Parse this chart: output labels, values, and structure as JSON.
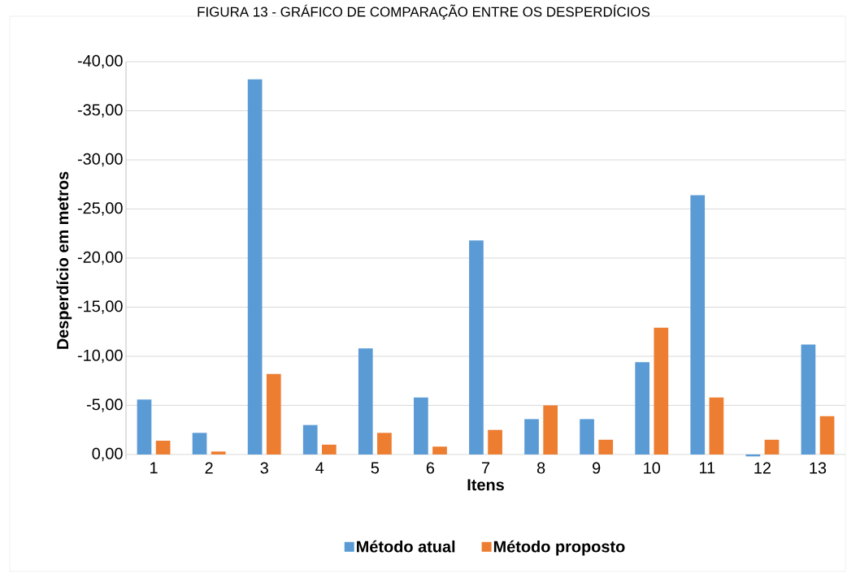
{
  "chart_data": {
    "type": "bar",
    "title": "FIGURA 13 - GRÁFICO DE COMPARAÇÃO ENTRE OS DESPERDÍCIOS",
    "xlabel": "Itens",
    "ylabel": "Desperdício em metros",
    "categories": [
      "1",
      "2",
      "3",
      "4",
      "5",
      "6",
      "7",
      "8",
      "9",
      "10",
      "11",
      "12",
      "13"
    ],
    "series": [
      {
        "name": "Método atual",
        "color": "#5b9bd5",
        "values": [
          -5.6,
          -2.2,
          -38.2,
          -3.0,
          -10.8,
          -5.8,
          -21.8,
          -3.6,
          -3.6,
          -9.4,
          -26.4,
          0.2,
          -11.2
        ]
      },
      {
        "name": "Método proposto",
        "color": "#ed7d31",
        "values": [
          -1.4,
          -0.3,
          -8.2,
          -1.0,
          -2.2,
          -0.8,
          -2.5,
          -5.0,
          -1.5,
          -12.9,
          -5.8,
          -1.5,
          -3.9
        ]
      }
    ],
    "ylim": [
      0.5,
      -40
    ],
    "yticks": [
      {
        "value": 0,
        "label": "0,00"
      },
      {
        "value": -5,
        "label": "-5,00"
      },
      {
        "value": -10,
        "label": "-10,00"
      },
      {
        "value": -15,
        "label": "-15,00"
      },
      {
        "value": -20,
        "label": "-20,00"
      },
      {
        "value": -25,
        "label": "-25,00"
      },
      {
        "value": -30,
        "label": "-30,00"
      },
      {
        "value": -35,
        "label": "-35,00"
      },
      {
        "value": -40,
        "label": "-40,00"
      }
    ],
    "grid": "y",
    "legend": "bottom"
  }
}
